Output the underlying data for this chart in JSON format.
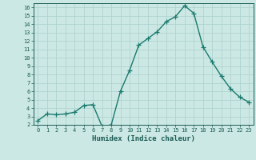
{
  "x": [
    0,
    1,
    2,
    3,
    4,
    5,
    6,
    7,
    8,
    9,
    10,
    11,
    12,
    13,
    14,
    15,
    16,
    17,
    18,
    19,
    20,
    21,
    22,
    23
  ],
  "y": [
    2.5,
    3.3,
    3.2,
    3.3,
    3.5,
    4.3,
    4.4,
    1.8,
    2.0,
    6.0,
    8.5,
    11.5,
    12.3,
    13.1,
    14.3,
    14.9,
    16.2,
    15.3,
    11.3,
    9.5,
    7.8,
    6.3,
    5.3,
    4.7
  ],
  "line_color": "#1a7a6e",
  "bg_color": "#cce8e4",
  "grid_color": "#b0d4d0",
  "tick_label_color": "#1a5c54",
  "axis_label_color": "#1a5c54",
  "xlabel": "Humidex (Indice chaleur)",
  "ylim": [
    2,
    16.5
  ],
  "xlim": [
    -0.5,
    23.5
  ],
  "yticks": [
    2,
    3,
    4,
    5,
    6,
    7,
    8,
    9,
    10,
    11,
    12,
    13,
    14,
    15,
    16
  ],
  "xticks": [
    0,
    1,
    2,
    3,
    4,
    5,
    6,
    7,
    8,
    9,
    10,
    11,
    12,
    13,
    14,
    15,
    16,
    17,
    18,
    19,
    20,
    21,
    22,
    23
  ],
  "marker": "+",
  "markersize": 4,
  "linewidth": 1.0
}
